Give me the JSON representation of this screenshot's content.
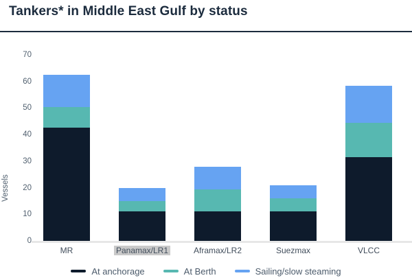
{
  "header": {
    "title": "Tankers* in Middle East Gulf by status"
  },
  "chart_data": {
    "type": "bar",
    "stacked": true,
    "title": "Tankers* in Middle East Gulf by status",
    "categories": [
      "MR",
      "Panamax/LR1",
      "Aframax/LR2",
      "Suezmax",
      "VLCC"
    ],
    "highlighted_category": "Panamax/LR1",
    "series": [
      {
        "name": "At anchorage",
        "color": "#0e1b2c",
        "values": [
          42.5,
          11,
          11,
          11,
          31.5
        ]
      },
      {
        "name": "At Berth",
        "color": "#57b8b1",
        "values": [
          8,
          4,
          8.5,
          5,
          13
        ]
      },
      {
        "name": "Sailing/slow steaming",
        "color": "#66a3f2",
        "values": [
          12,
          5,
          8.5,
          5,
          14
        ]
      }
    ],
    "totals": [
      62.5,
      20,
      28,
      21,
      58.5
    ],
    "xlabel": "",
    "ylabel": "Vessels",
    "ylim": [
      0,
      70
    ],
    "yticks": [
      0,
      10,
      20,
      30,
      40,
      50,
      60,
      70
    ],
    "grid": false,
    "legend_position": "bottom"
  },
  "colors": {
    "title": "#1b2b3d",
    "divider": "#1b2b3d",
    "axis_text": "#51606f",
    "x_label_text": "#414d5b",
    "legend_text": "#4c5b6b",
    "highlight_bg": "#c9c9c9",
    "baseline": "#e7e7e7",
    "background": "#ffffff"
  }
}
